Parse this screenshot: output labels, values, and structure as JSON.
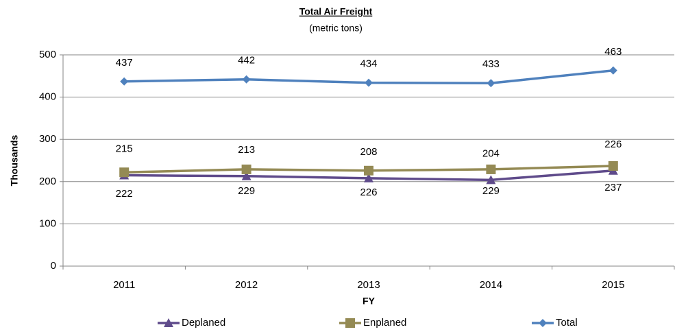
{
  "chart_data": {
    "type": "line",
    "title": "Total Air Freight",
    "subtitle": "(metric tons)",
    "x_label": "FY",
    "y_label": "Thousands",
    "categories": [
      "2011",
      "2012",
      "2013",
      "2014",
      "2015"
    ],
    "series": [
      {
        "name": "Deplaned",
        "color": "#5f4b8b",
        "marker": "triangle",
        "values": [
          215,
          213,
          208,
          204,
          226
        ]
      },
      {
        "name": "Enplaned",
        "color": "#948a54",
        "marker": "square",
        "values": [
          222,
          229,
          226,
          229,
          237
        ]
      },
      {
        "name": "Total",
        "color": "#4f81bd",
        "marker": "diamond",
        "values": [
          437,
          442,
          434,
          433,
          463
        ]
      }
    ],
    "ylim": [
      0,
      500
    ],
    "yticks": [
      0,
      100,
      200,
      300,
      400,
      500
    ],
    "grid": true,
    "legend": "bottom"
  }
}
